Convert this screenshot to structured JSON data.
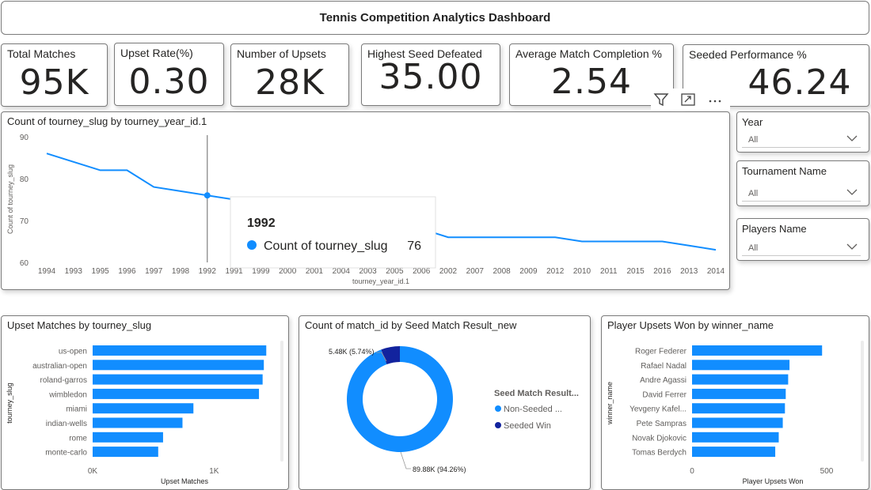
{
  "header": {
    "title": "Tennis Competition Analytics Dashboard"
  },
  "kpis": [
    {
      "label": "Total Matches",
      "value": "95K"
    },
    {
      "label": "Upset Rate(%)",
      "value": "0.30"
    },
    {
      "label": "Number of Upsets",
      "value": "28K"
    },
    {
      "label": "Highest Seed Defeated",
      "value": "35.00"
    },
    {
      "label": "Average Match Completion %",
      "value": "2.54"
    },
    {
      "label": "Seeded Performance %",
      "value": "46.24"
    }
  ],
  "visual_header_icons": [
    "filter-icon",
    "focus-mode-icon",
    "more-options-icon"
  ],
  "line_visual": {
    "title": "Count of tourney_slug by tourney_year_id.1",
    "tooltip": {
      "header": "1992",
      "series": "Count of tourney_slug",
      "value": "76"
    }
  },
  "slicers": [
    {
      "title": "Year",
      "value": "All"
    },
    {
      "title": "Tournament Name",
      "value": "All"
    },
    {
      "title": "Players Name",
      "value": "All"
    }
  ],
  "bar_visual_1": {
    "title": "Upset Matches by tourney_slug"
  },
  "donut_visual": {
    "title": "Count of match_id by Seed Match Result_new",
    "legend_title": "Seed Match Result...",
    "legend_items": [
      "Non-Seeded ...",
      "Seeded Win"
    ],
    "labels": [
      "5.48K (5.74%)",
      "89.88K (94.26%)"
    ]
  },
  "bar_visual_2": {
    "title": "Player Upsets Won by winner_name"
  },
  "colors": {
    "primary": "#118dff",
    "dark": "#12239e",
    "border": "#7a7a7a"
  },
  "chart_data": [
    {
      "type": "line",
      "title": "Count of tourney_slug by tourney_year_id.1",
      "xlabel": "tourney_year_id.1",
      "ylabel": "Count of tourney_slug",
      "x": [
        "1994",
        "1993",
        "1995",
        "1996",
        "1997",
        "1998",
        "1992",
        "1991",
        "1999",
        "2000",
        "2001",
        "2004",
        "2003",
        "2005",
        "2006",
        "2002",
        "2007",
        "2008",
        "2009",
        "2012",
        "2010",
        "2011",
        "2015",
        "2016",
        "2013",
        "2014"
      ],
      "y_ticks": [
        60,
        70,
        80,
        90
      ],
      "ylim": [
        60,
        90
      ],
      "series": [
        {
          "values": [
            86,
            84,
            82,
            82,
            78,
            77,
            76,
            75,
            74,
            73,
            72,
            71,
            70,
            69,
            68,
            66,
            66,
            66,
            66,
            66,
            65,
            65,
            65,
            65,
            64,
            63
          ]
        }
      ],
      "grid": false
    },
    {
      "type": "bar",
      "orientation": "horizontal",
      "title": "Upset Matches by tourney_slug",
      "xlabel": "Upset Matches",
      "ylabel": "tourney_slug",
      "categories": [
        "us-open",
        "australian-open",
        "roland-garros",
        "wimbledon",
        "miami",
        "indian-wells",
        "rome",
        "monte-carlo"
      ],
      "values": [
        1430,
        1410,
        1400,
        1370,
        830,
        740,
        580,
        540
      ],
      "x_ticks": [
        "0K",
        "1K"
      ],
      "xlim": [
        0,
        1500
      ]
    },
    {
      "type": "pie",
      "variant": "donut",
      "title": "Count of match_id by Seed Match Result_new",
      "legend_title": "Seed Match Result...",
      "categories": [
        "Non-Seeded ...",
        "Seeded Win"
      ],
      "values": [
        89880,
        5480
      ],
      "percent": [
        94.26,
        5.74
      ],
      "legend_position": "right"
    },
    {
      "type": "bar",
      "orientation": "horizontal",
      "title": "Player Upsets Won by winner_name",
      "xlabel": "Player Upsets Won",
      "ylabel": "winner_name",
      "categories": [
        "Roger Federer",
        "Rafael Nadal",
        "Andre Agassi",
        "David Ferrer",
        "Yevgeny Kafel...",
        "Pete Sampras",
        "Novak Djokovic",
        "Tomas Berdych"
      ],
      "values": [
        483,
        362,
        357,
        348,
        345,
        337,
        322,
        309
      ],
      "x_ticks": [
        "0",
        "500"
      ],
      "xlim": [
        0,
        600
      ]
    }
  ]
}
